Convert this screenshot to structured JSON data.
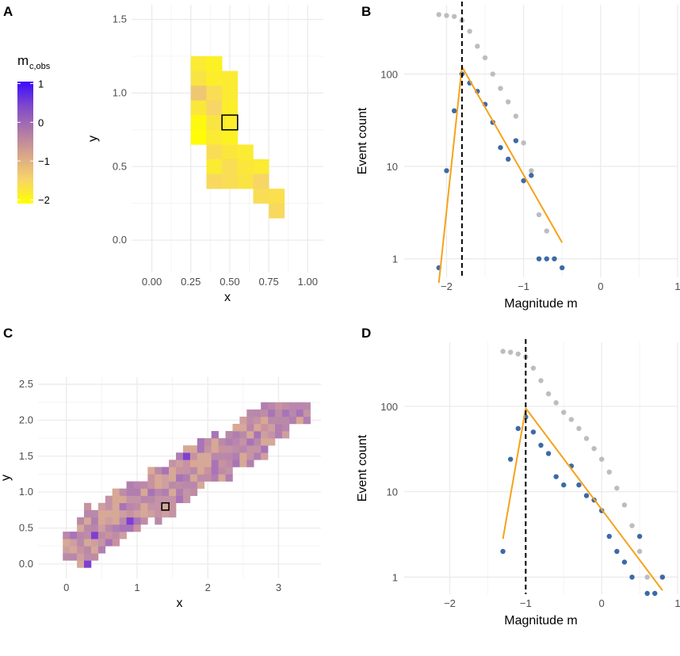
{
  "chart_data": [
    {
      "id": "A",
      "type": "heatmap",
      "panel": "A",
      "xlabel": "x",
      "ylabel": "y",
      "xlim": [
        -0.13,
        1.1
      ],
      "ylim": [
        -0.22,
        1.6
      ],
      "xticks": [
        "0.00",
        "0.25",
        "0.50",
        "0.75",
        "1.00"
      ],
      "xtick_values": [
        0,
        0.25,
        0.5,
        0.75,
        1.0
      ],
      "yticks": [
        "0.0",
        "0.5",
        "1.0",
        "1.5"
      ],
      "ytick_values": [
        0,
        0.5,
        1.0,
        1.5
      ],
      "cell_size": 0.1,
      "colorbar": {
        "title": "m",
        "title_sub": "c,obs",
        "labels": [
          "1",
          "0",
          "−1",
          "−2"
        ],
        "label_values": [
          1,
          0,
          -1,
          -2
        ],
        "range": [
          -2.1,
          1.05
        ],
        "stops": [
          "#ffff00",
          "#f7d46a",
          "#d9a58b",
          "#ae77a8",
          "#7f49cc",
          "#3b0aff"
        ]
      },
      "cells": [
        [
          0.3,
          1.2,
          -1.8
        ],
        [
          0.4,
          1.2,
          -1.9
        ],
        [
          0.3,
          1.1,
          -1.7
        ],
        [
          0.4,
          1.1,
          -1.85
        ],
        [
          0.5,
          1.1,
          -1.8
        ],
        [
          0.3,
          1.0,
          -1.3
        ],
        [
          0.4,
          1.0,
          -1.6
        ],
        [
          0.5,
          1.0,
          -1.8
        ],
        [
          0.3,
          0.9,
          -1.75
        ],
        [
          0.4,
          0.9,
          -1.5
        ],
        [
          0.5,
          0.9,
          -1.85
        ],
        [
          0.3,
          0.8,
          -2.0
        ],
        [
          0.4,
          0.8,
          -1.7
        ],
        [
          0.5,
          0.8,
          -1.85
        ],
        [
          0.3,
          0.7,
          -2.05
        ],
        [
          0.4,
          0.7,
          -1.8
        ],
        [
          0.5,
          0.7,
          -1.9
        ],
        [
          0.4,
          0.6,
          -1.6
        ],
        [
          0.5,
          0.6,
          -1.75
        ],
        [
          0.6,
          0.6,
          -1.8
        ],
        [
          0.4,
          0.5,
          -1.8
        ],
        [
          0.5,
          0.5,
          -1.6
        ],
        [
          0.6,
          0.5,
          -1.75
        ],
        [
          0.7,
          0.5,
          -1.8
        ],
        [
          0.4,
          0.4,
          -1.55
        ],
        [
          0.5,
          0.4,
          -1.6
        ],
        [
          0.6,
          0.4,
          -1.7
        ],
        [
          0.7,
          0.4,
          -1.5
        ],
        [
          0.7,
          0.3,
          -1.6
        ],
        [
          0.8,
          0.3,
          -1.65
        ],
        [
          0.8,
          0.2,
          -1.55
        ]
      ],
      "highlight_cell": [
        0.5,
        0.8
      ]
    },
    {
      "id": "B",
      "type": "scatter",
      "panel": "B",
      "xlabel": "Magnitude m",
      "ylabel": "Event count",
      "yscale": "log10",
      "xlim": [
        -2.55,
        1.0
      ],
      "ylim_log10": [
        -0.2,
        2.75
      ],
      "xticks": [
        "−2",
        "−1",
        "0",
        "1"
      ],
      "xtick_values": [
        -2,
        -1,
        0,
        1
      ],
      "yticks": [
        "1",
        "10",
        "100"
      ],
      "ytick_values": [
        1,
        10,
        100
      ],
      "series": [
        {
          "name": "cumulative",
          "color": "#bdbdbd",
          "x": [
            -2.1,
            -2.0,
            -1.9,
            -1.8,
            -1.7,
            -1.6,
            -1.5,
            -1.4,
            -1.3,
            -1.2,
            -1.1,
            -1.0,
            -0.9,
            -0.8,
            -0.7
          ],
          "y": [
            440,
            430,
            420,
            380,
            290,
            200,
            150,
            100,
            70,
            50,
            35,
            18,
            9,
            3,
            2
          ]
        },
        {
          "name": "non-cumulative",
          "color": "#3c6aa8",
          "x": [
            -2.1,
            -2.0,
            -1.9,
            -1.8,
            -1.7,
            -1.6,
            -1.5,
            -1.4,
            -1.3,
            -1.2,
            -1.1,
            -1.0,
            -0.9,
            -0.8,
            -0.7,
            -0.6,
            -0.5
          ],
          "y": [
            0.8,
            9,
            40,
            100,
            80,
            65,
            47,
            30,
            16,
            12,
            19,
            7,
            8,
            1,
            1,
            1,
            0.8
          ]
        }
      ],
      "fit_lines": [
        {
          "x": [
            -2.1,
            -1.8
          ],
          "y": [
            0.55,
            120
          ]
        },
        {
          "x": [
            -1.8,
            -0.5
          ],
          "y": [
            120,
            1.5
          ]
        }
      ],
      "fit_color": "#f6a21a",
      "vline": -1.8
    },
    {
      "id": "C",
      "type": "heatmap",
      "panel": "C",
      "xlabel": "x",
      "ylabel": "y",
      "xlim": [
        -0.4,
        3.6
      ],
      "ylim": [
        -0.2,
        2.6
      ],
      "xticks": [
        "0",
        "1",
        "2",
        "3"
      ],
      "xtick_values": [
        0,
        1,
        2,
        3
      ],
      "yticks": [
        "0.0",
        "0.5",
        "1.0",
        "1.5",
        "2.0",
        "2.5"
      ],
      "ytick_values": [
        0,
        0.5,
        1.0,
        1.5,
        2.0,
        2.5
      ],
      "cell_size": 0.1,
      "highlight_cell": [
        1.4,
        0.8
      ],
      "dark_cells": [
        [
          0.3,
          0.0
        ],
        [
          0.4,
          0.4
        ],
        [
          2.5,
          2.2
        ],
        [
          0.9,
          0.6
        ],
        [
          1.7,
          1.5
        ]
      ]
    },
    {
      "id": "D",
      "type": "scatter",
      "panel": "D",
      "xlabel": "Magnitude m",
      "ylabel": "Event count",
      "yscale": "log10",
      "xlim": [
        -2.6,
        1.0
      ],
      "ylim_log10": [
        -0.2,
        2.75
      ],
      "xticks": [
        "−2",
        "−1",
        "0",
        "1"
      ],
      "xtick_values": [
        -2,
        -1,
        0,
        1
      ],
      "yticks": [
        "1",
        "10",
        "100"
      ],
      "ytick_values": [
        1,
        10,
        100
      ],
      "series": [
        {
          "name": "cumulative",
          "color": "#bdbdbd",
          "x": [
            -1.3,
            -1.2,
            -1.1,
            -1.0,
            -0.9,
            -0.8,
            -0.7,
            -0.6,
            -0.5,
            -0.4,
            -0.3,
            -0.2,
            -0.1,
            0.0,
            0.1,
            0.2,
            0.3,
            0.4,
            0.5,
            0.6
          ],
          "y": [
            440,
            430,
            410,
            380,
            280,
            200,
            140,
            110,
            85,
            70,
            55,
            42,
            32,
            24,
            17,
            11,
            7,
            4,
            2,
            1
          ],
          "extra": [
            [
              0.8,
              1
            ]
          ]
        },
        {
          "name": "non-cumulative",
          "color": "#3c6aa8",
          "x": [
            -1.3,
            -1.2,
            -1.1,
            -1.0,
            -0.9,
            -0.8,
            -0.7,
            -0.6,
            -0.5,
            -0.4,
            -0.3,
            -0.2,
            -0.1,
            0.0,
            0.1,
            0.2,
            0.3,
            0.4,
            0.5,
            0.6,
            0.7,
            0.8
          ],
          "y": [
            2,
            24,
            55,
            75,
            50,
            35,
            28,
            15,
            12,
            20,
            12,
            9,
            8,
            6,
            3,
            2,
            1.5,
            1,
            3,
            0.55,
            0.55,
            1
          ]
        }
      ],
      "fit_lines": [
        {
          "x": [
            -1.3,
            -1.0
          ],
          "y": [
            2.8,
            95
          ]
        },
        {
          "x": [
            -1.0,
            0.8
          ],
          "y": [
            95,
            0.7
          ]
        }
      ],
      "fit_color": "#f6a21a",
      "vline": -1.0
    }
  ]
}
